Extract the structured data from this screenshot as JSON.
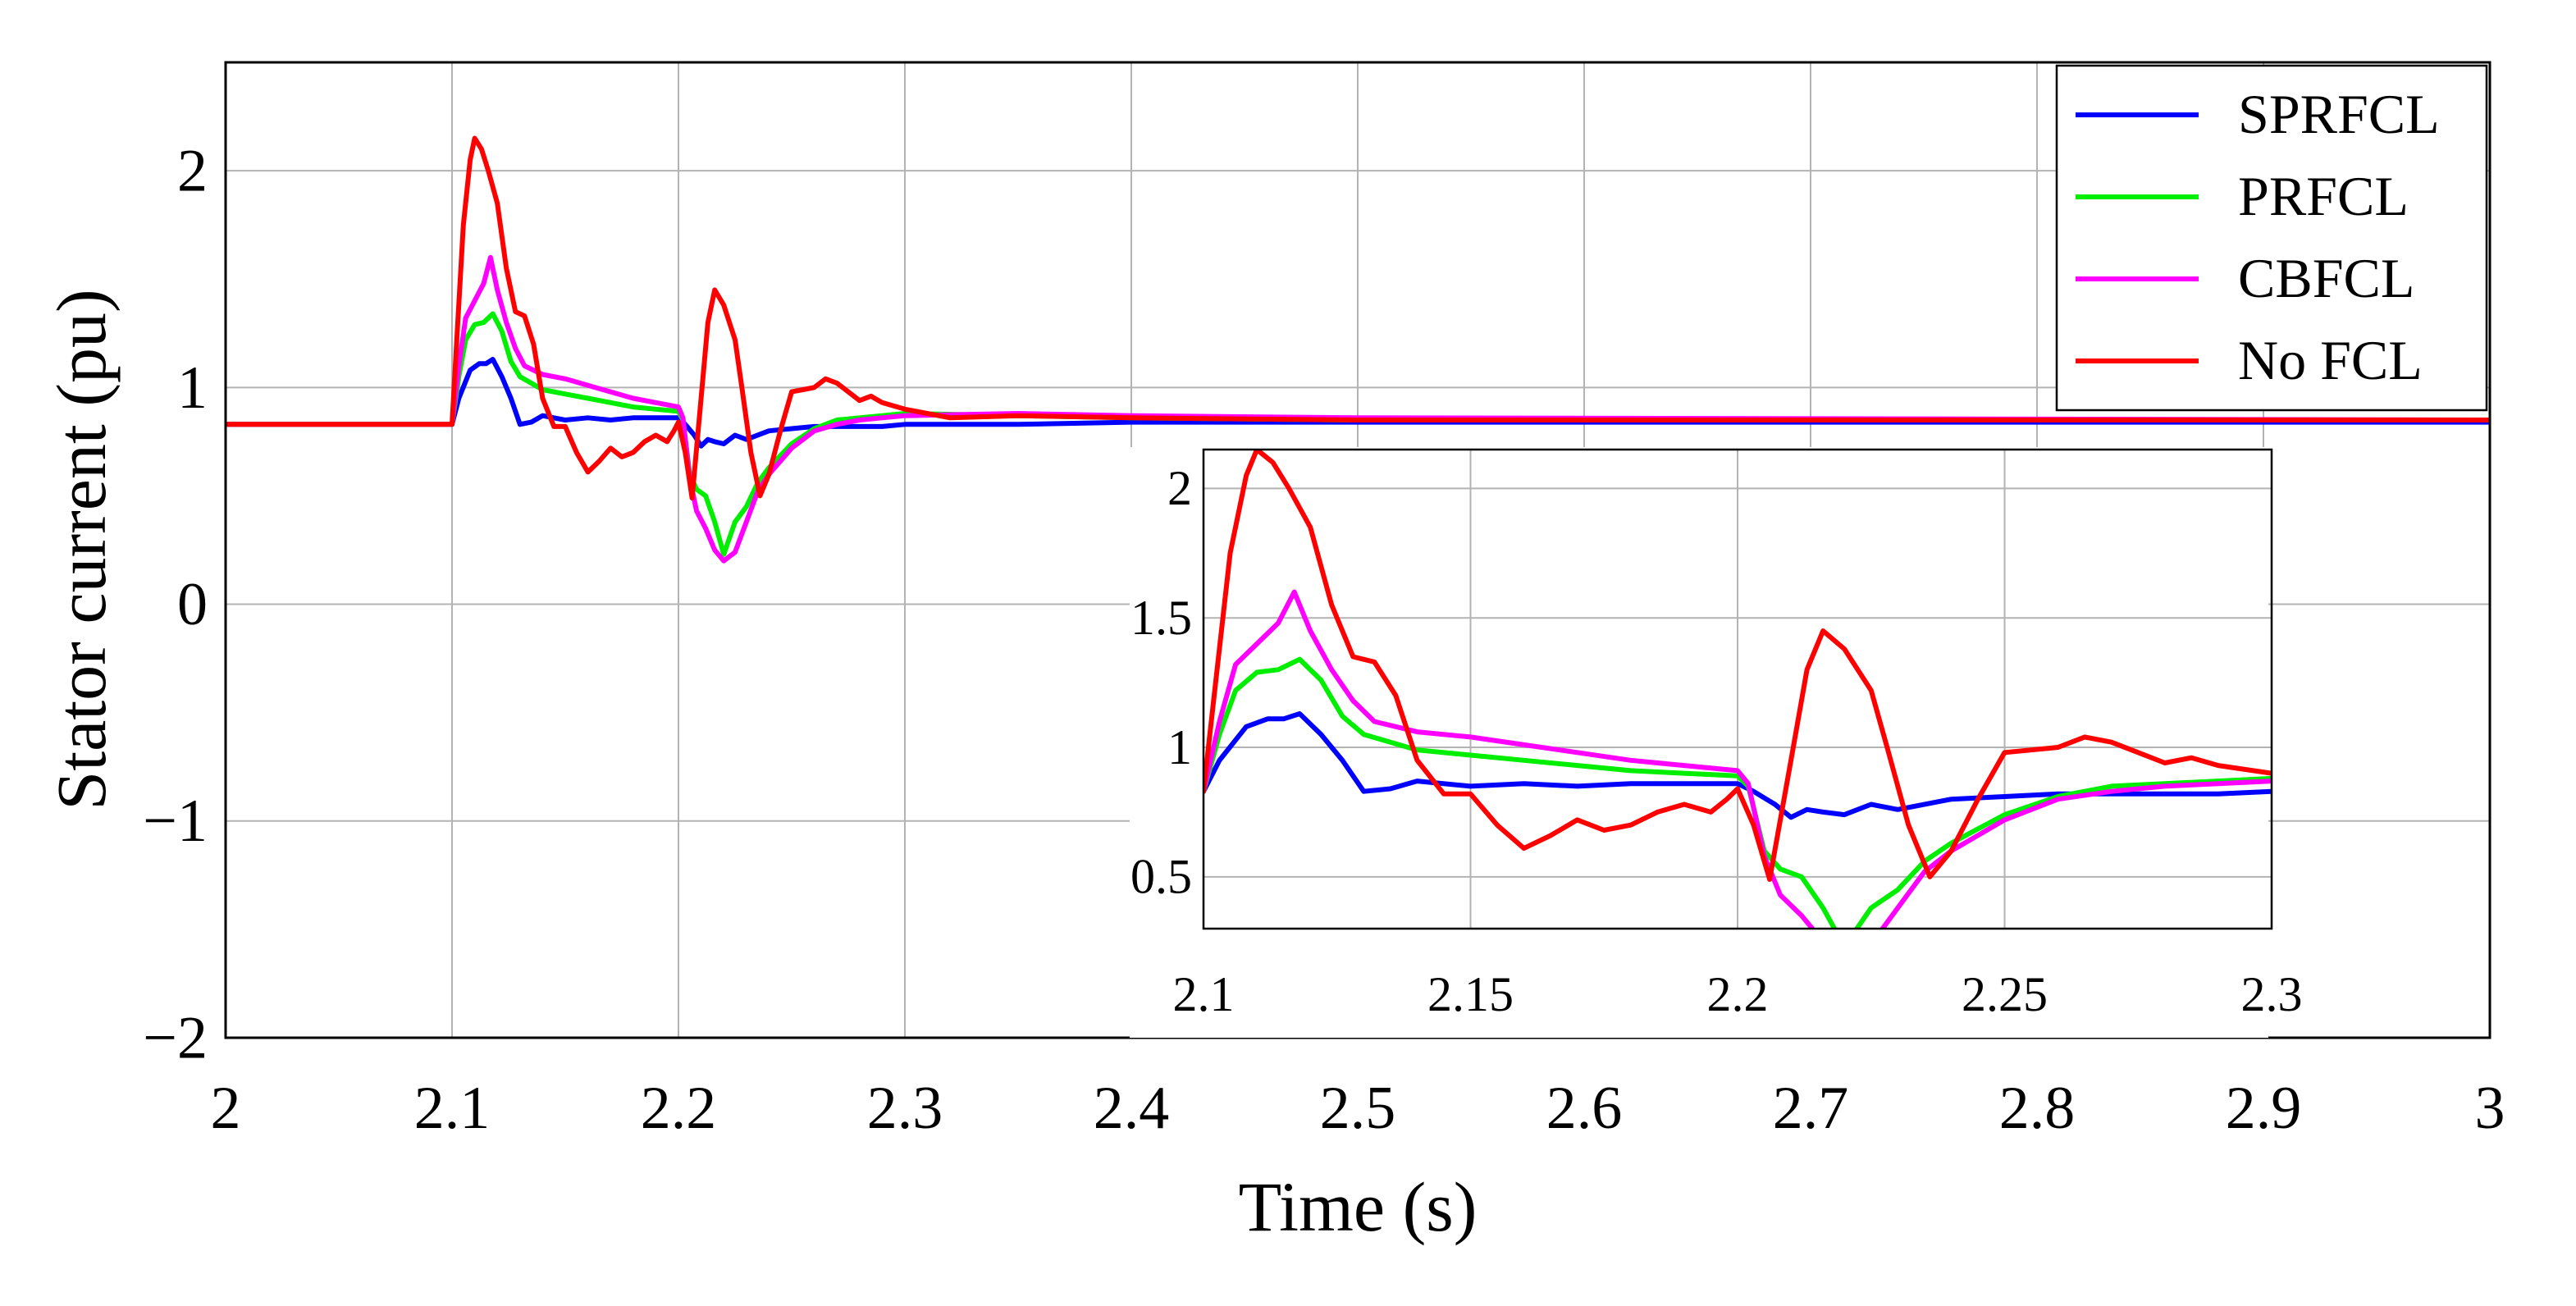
{
  "chart_data": [
    {
      "id": "main",
      "type": "line",
      "title": "",
      "xlabel": "Time (s)",
      "ylabel": "Stator current (pu)",
      "xlim": [
        2,
        3
      ],
      "ylim": [
        -2,
        2.5
      ],
      "xticks": [
        2,
        2.1,
        2.2,
        2.3,
        2.4,
        2.5,
        2.6,
        2.7,
        2.8,
        2.9,
        3
      ],
      "xtick_labels": [
        "2",
        "2.1",
        "2.2",
        "2.3",
        "2.4",
        "2.5",
        "2.6",
        "2.7",
        "2.8",
        "2.9",
        "3"
      ],
      "yticks": [
        -2,
        -1,
        0,
        1,
        2
      ],
      "ytick_labels": [
        "−2",
        "−1",
        "0",
        "1",
        "2"
      ],
      "grid": true,
      "legend_position": "top-right",
      "series": [
        {
          "name": "SPRFCL",
          "color": "#0000ff",
          "x": [
            2,
            2.1,
            2.103,
            2.108,
            2.112,
            2.115,
            2.118,
            2.122,
            2.126,
            2.13,
            2.135,
            2.14,
            2.15,
            2.16,
            2.17,
            2.18,
            2.19,
            2.2,
            2.203,
            2.207,
            2.21,
            2.213,
            2.216,
            2.22,
            2.225,
            2.23,
            2.24,
            2.25,
            2.26,
            2.27,
            2.28,
            2.29,
            2.3,
            2.35,
            2.4,
            2.5,
            3
          ],
          "y": [
            0.83,
            0.83,
            0.95,
            1.08,
            1.11,
            1.11,
            1.13,
            1.05,
            0.95,
            0.83,
            0.84,
            0.87,
            0.85,
            0.86,
            0.85,
            0.86,
            0.86,
            0.86,
            0.83,
            0.78,
            0.73,
            0.76,
            0.75,
            0.74,
            0.78,
            0.76,
            0.8,
            0.81,
            0.82,
            0.82,
            0.82,
            0.82,
            0.83,
            0.83,
            0.84,
            0.84,
            0.84
          ]
        },
        {
          "name": "PRFCL",
          "color": "#00ee00",
          "x": [
            2,
            2.1,
            2.103,
            2.106,
            2.11,
            2.114,
            2.118,
            2.122,
            2.126,
            2.13,
            2.14,
            2.15,
            2.16,
            2.17,
            2.18,
            2.19,
            2.2,
            2.202,
            2.205,
            2.208,
            2.212,
            2.216,
            2.22,
            2.225,
            2.23,
            2.235,
            2.24,
            2.25,
            2.26,
            2.27,
            2.28,
            2.29,
            2.3,
            2.35,
            2.4,
            2.5,
            3
          ],
          "y": [
            0.83,
            0.83,
            1.05,
            1.22,
            1.29,
            1.3,
            1.34,
            1.26,
            1.12,
            1.05,
            0.99,
            0.97,
            0.95,
            0.93,
            0.91,
            0.9,
            0.89,
            0.85,
            0.6,
            0.53,
            0.5,
            0.38,
            0.23,
            0.38,
            0.45,
            0.56,
            0.63,
            0.74,
            0.81,
            0.85,
            0.86,
            0.87,
            0.88,
            0.87,
            0.86,
            0.85,
            0.85
          ]
        },
        {
          "name": "CBFCL",
          "color": "#ff00ff",
          "x": [
            2,
            2.1,
            2.103,
            2.106,
            2.11,
            2.114,
            2.117,
            2.12,
            2.124,
            2.128,
            2.132,
            2.14,
            2.15,
            2.16,
            2.17,
            2.18,
            2.19,
            2.2,
            2.202,
            2.205,
            2.208,
            2.212,
            2.216,
            2.22,
            2.225,
            2.23,
            2.235,
            2.24,
            2.25,
            2.26,
            2.27,
            2.28,
            2.29,
            2.3,
            2.35,
            2.4,
            2.5,
            3
          ],
          "y": [
            0.83,
            0.83,
            1.1,
            1.32,
            1.4,
            1.48,
            1.6,
            1.45,
            1.3,
            1.18,
            1.1,
            1.06,
            1.04,
            1.01,
            0.98,
            0.95,
            0.93,
            0.91,
            0.86,
            0.58,
            0.43,
            0.35,
            0.25,
            0.2,
            0.24,
            0.38,
            0.52,
            0.6,
            0.72,
            0.8,
            0.83,
            0.85,
            0.86,
            0.87,
            0.88,
            0.87,
            0.86,
            0.85
          ]
        },
        {
          "name": "No FCL",
          "color": "#ff0000",
          "x": [
            2,
            2.1,
            2.102,
            2.105,
            2.108,
            2.11,
            2.113,
            2.116,
            2.12,
            2.124,
            2.128,
            2.132,
            2.136,
            2.14,
            2.145,
            2.15,
            2.155,
            2.16,
            2.165,
            2.17,
            2.175,
            2.18,
            2.185,
            2.19,
            2.195,
            2.198,
            2.2,
            2.203,
            2.206,
            2.21,
            2.213,
            2.216,
            2.22,
            2.225,
            2.228,
            2.232,
            2.236,
            2.24,
            2.245,
            2.25,
            2.255,
            2.26,
            2.265,
            2.27,
            2.275,
            2.28,
            2.285,
            2.29,
            2.3,
            2.32,
            2.35,
            2.4,
            2.5,
            3
          ],
          "y": [
            0.83,
            0.83,
            1.2,
            1.75,
            2.05,
            2.15,
            2.1,
            2.0,
            1.85,
            1.55,
            1.35,
            1.33,
            1.2,
            0.95,
            0.82,
            0.82,
            0.7,
            0.61,
            0.66,
            0.72,
            0.68,
            0.7,
            0.75,
            0.78,
            0.75,
            0.8,
            0.84,
            0.7,
            0.49,
            0.95,
            1.3,
            1.45,
            1.38,
            1.22,
            1.0,
            0.7,
            0.5,
            0.6,
            0.8,
            0.98,
            0.99,
            1.0,
            1.04,
            1.02,
            0.98,
            0.94,
            0.96,
            0.93,
            0.9,
            0.86,
            0.87,
            0.86,
            0.85,
            0.85
          ]
        }
      ]
    },
    {
      "id": "inset",
      "type": "line",
      "title": "",
      "xlabel": "",
      "ylabel": "",
      "xlim": [
        2.1,
        2.3
      ],
      "ylim": [
        0.3,
        2.15
      ],
      "xticks": [
        2.1,
        2.15,
        2.2,
        2.25,
        2.3
      ],
      "xtick_labels": [
        "2.1",
        "2.15",
        "2.2",
        "2.25",
        "2.3"
      ],
      "yticks": [
        0.5,
        1,
        1.5,
        2
      ],
      "ytick_labels": [
        "0.5",
        "1",
        "1.5",
        "2"
      ],
      "grid": true,
      "series_ref": "same as main, zoomed on 2.1–2.3 s"
    }
  ]
}
